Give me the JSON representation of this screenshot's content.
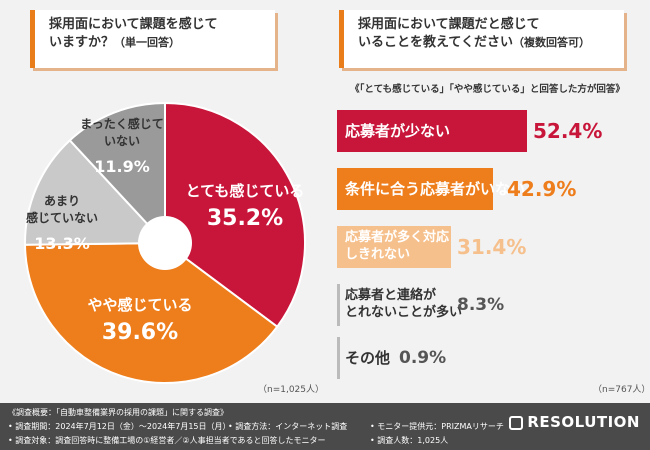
{
  "chart_data": [
    {
      "type": "pie",
      "title_line1": "採用面において課題を感じて",
      "title_line2": "いますか？",
      "title_note": "（単一回答）",
      "n_label": "（n=1,025人）",
      "slices": [
        {
          "label_lines": [
            "とても感じている"
          ],
          "value": 35.2,
          "value_text": "35.2%",
          "color": "#c8153a"
        },
        {
          "label_lines": [
            "やや感じている"
          ],
          "value": 39.6,
          "value_text": "39.6%",
          "color": "#ee7d1b"
        },
        {
          "label_lines": [
            "あまり",
            "感じていない"
          ],
          "value": 13.3,
          "value_text": "13.3%",
          "color": "#c9c9c9"
        },
        {
          "label_lines": [
            "まったく感じて",
            "いない"
          ],
          "value": 11.9,
          "value_text": "11.9%",
          "color": "#9a9a9a"
        }
      ]
    },
    {
      "type": "bar",
      "title_line1": "採用面において課題だと感じて",
      "title_line2": "いることを教えてください",
      "title_note": "（複数回答可）",
      "subtitle": "《「とても感じている」「やや感じている」と回答した方が回答》",
      "n_label": "（n=767人）",
      "bars": [
        {
          "label_lines": [
            "応募者が少ない"
          ],
          "value": 52.4,
          "value_text": "52.4%",
          "color": "#c8153a",
          "label_color": "#ffffff"
        },
        {
          "label_lines": [
            "条件に合う応募者がいない"
          ],
          "value": 42.9,
          "value_text": "42.9%",
          "color": "#ee7d1b",
          "label_color": "#ffffff"
        },
        {
          "label_lines": [
            "応募者が多く対応",
            "しきれない"
          ],
          "value": 31.4,
          "value_text": "31.4%",
          "color": "#f6c08d",
          "label_color": "#ffffff"
        },
        {
          "label_lines": [
            "応募者と連絡が",
            "とれないことが多い"
          ],
          "value": 8.3,
          "value_text": "8.3%",
          "color": "#d9d9d9",
          "label_color": "#333333"
        },
        {
          "label_lines": [
            "その他"
          ],
          "value": 0.9,
          "value_text": "0.9%",
          "color": "#d9d9d9",
          "label_color": "#333333"
        }
      ]
    }
  ],
  "footer": {
    "line1": "《調査概要：「自動車整備業界の採用の課題」に関する調査》",
    "line2a": "• 調査期間：2024年7月12日（金）～2024年7月15日（月）",
    "line2b": "• 調査方法：インターネット調査",
    "line2c": "• モニター提供元：PRIZMAリサーチ",
    "line3a": "• 調査対象：調査回答時に整備工場の①経営者／②人事担当者であると回答したモニター",
    "line3b": "• 調査人数：1,025人",
    "logo_text": "RESOLUTION"
  }
}
